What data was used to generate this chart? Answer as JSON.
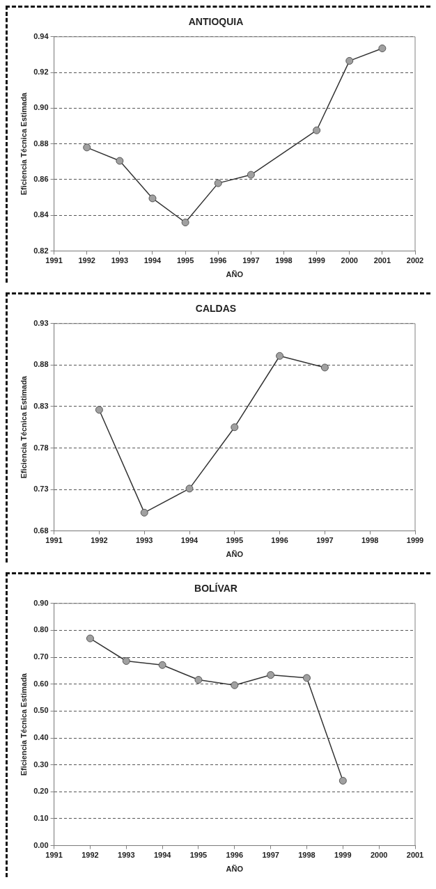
{
  "chart_data": [
    {
      "type": "line",
      "title": "ANTIOQUIA",
      "xlabel": "AÑO",
      "ylabel": "Eficiencia Técnica Estimada",
      "x": [
        1992,
        1993,
        1994,
        1995,
        1996,
        1997,
        1999,
        2000,
        2001
      ],
      "series": [
        {
          "color": "#333333",
          "values": [
            0.878,
            0.8705,
            0.8495,
            0.836,
            0.858,
            0.8627,
            0.8876,
            0.9265,
            0.9335
          ]
        }
      ],
      "xlim": [
        1991,
        2002
      ],
      "xticks": [
        1991,
        1992,
        1993,
        1994,
        1995,
        1996,
        1997,
        1998,
        1999,
        2000,
        2001,
        2002
      ],
      "ylim": [
        0.82,
        0.94
      ],
      "yticks": [
        0.82,
        0.84,
        0.86,
        0.88,
        {
          "value": 0.9,
          "label": "0.90"
        },
        0.92,
        0.94
      ],
      "grid": "y",
      "legend": false,
      "marker": "circle",
      "line_style": "solid"
    },
    {
      "type": "line",
      "title": "CALDAS",
      "xlabel": "AÑO",
      "ylabel": "Eficiencia Técnica Estimada",
      "x": [
        1992,
        1993,
        1994,
        1995,
        1996,
        1997
      ],
      "series": [
        {
          "color": "#333333",
          "values": [
            0.826,
            0.702,
            0.731,
            0.805,
            0.891,
            0.877
          ]
        }
      ],
      "xlim": [
        1991,
        1999
      ],
      "xticks": [
        1991,
        1992,
        1993,
        1994,
        1995,
        1996,
        1997,
        1998,
        1999
      ],
      "ylim": [
        0.68,
        0.93
      ],
      "yticks": [
        0.68,
        0.73,
        0.78,
        0.83,
        0.88,
        0.93
      ],
      "grid": "y",
      "legend": false,
      "marker": "circle",
      "line_style": "solid"
    },
    {
      "type": "line",
      "title": "BOLÍVAR",
      "xlabel": "AÑO",
      "ylabel": "Eficiencia Técnica Estimada",
      "x": [
        1992,
        1993,
        1994,
        1995,
        1996,
        1997,
        1998,
        1999
      ],
      "series": [
        {
          "color": "#333333",
          "values": [
            0.77,
            0.686,
            0.671,
            0.616,
            0.596,
            0.634,
            0.623,
            0.241
          ]
        }
      ],
      "xlim": [
        1991,
        2001
      ],
      "xticks": [
        1991,
        1992,
        1993,
        1994,
        1995,
        1996,
        1997,
        1998,
        1999,
        2000,
        2001
      ],
      "ylim": [
        0,
        0.9
      ],
      "yticks": [
        {
          "value": 0,
          "label": "0.00"
        },
        {
          "value": 0.1,
          "label": "0.10"
        },
        {
          "value": 0.2,
          "label": "0.20"
        },
        {
          "value": 0.3,
          "label": "0.30"
        },
        {
          "value": 0.4,
          "label": "0.40"
        },
        {
          "value": 0.5,
          "label": "0.50"
        },
        {
          "value": 0.6,
          "label": "0.60"
        },
        {
          "value": 0.7,
          "label": "0.70"
        },
        {
          "value": 0.8,
          "label": "0.80"
        },
        {
          "value": 0.9,
          "label": "0.90"
        }
      ],
      "grid": "y",
      "legend": false,
      "marker": "circle",
      "line_style": "solid"
    }
  ]
}
